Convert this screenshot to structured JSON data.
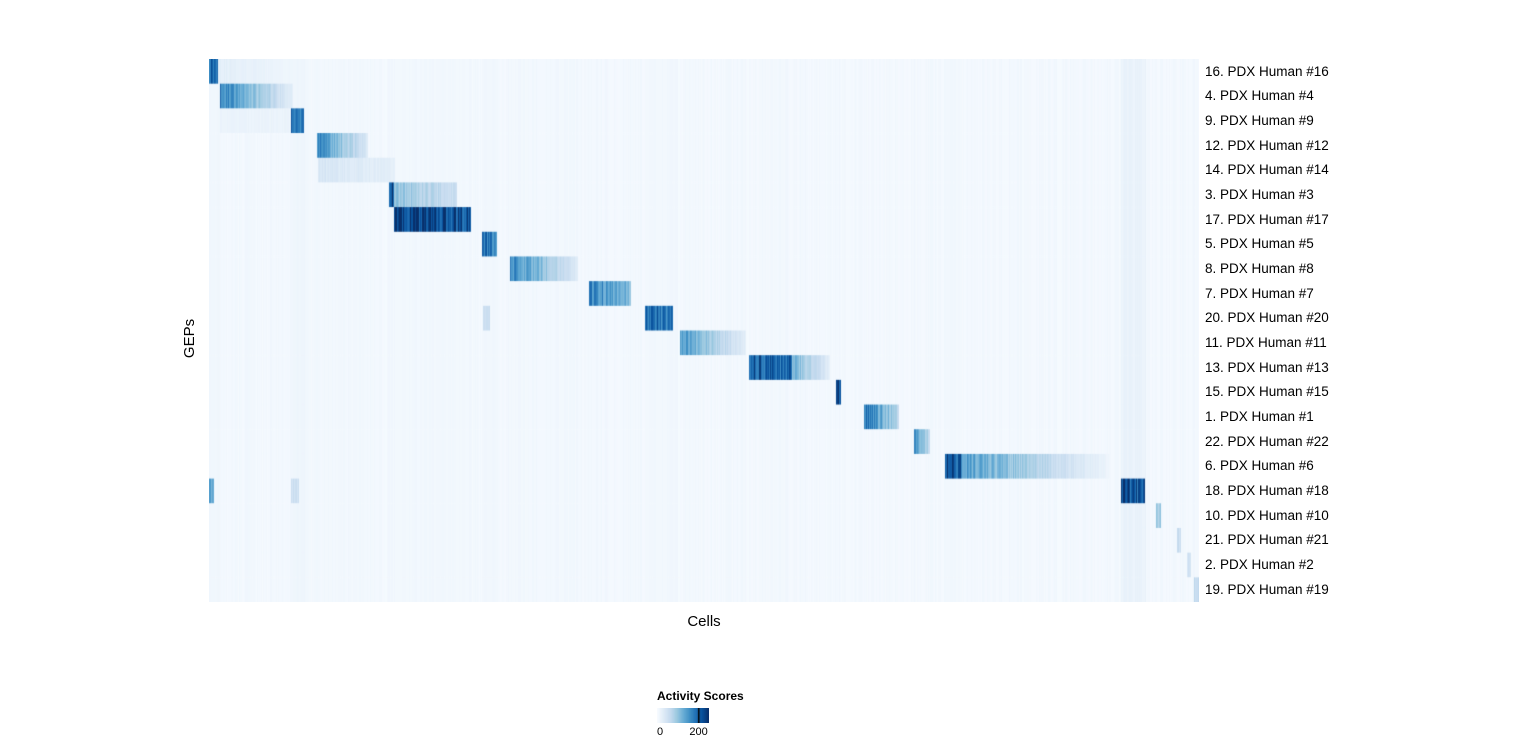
{
  "chart_data": {
    "type": "heatmap",
    "title": "",
    "xlabel": "Cells",
    "ylabel": "GEPs",
    "colormap": "Blues",
    "background_value_color": "#f7fbff",
    "max_value_color": "#08306b",
    "value_range": [
      0,
      250
    ],
    "colormap_stops": [
      [
        0.0,
        247,
        251,
        255
      ],
      [
        0.125,
        222,
        235,
        247
      ],
      [
        0.25,
        198,
        219,
        239
      ],
      [
        0.375,
        158,
        202,
        225
      ],
      [
        0.5,
        107,
        174,
        214
      ],
      [
        0.625,
        66,
        146,
        198
      ],
      [
        0.75,
        33,
        113,
        181
      ],
      [
        0.875,
        8,
        81,
        156
      ],
      [
        1.0,
        8,
        48,
        107
      ]
    ],
    "legend": {
      "title": "Activity Scores",
      "min_label": "0",
      "max_label": "200",
      "tick_fraction": 0.8
    },
    "rows": [
      {
        "label": "16. PDX Human #16",
        "segments": [
          [
            0.0,
            0.009,
            200,
            200
          ],
          [
            0.009,
            0.084,
            25,
            10
          ]
        ]
      },
      {
        "label": "4. PDX Human #4",
        "segments": [
          [
            0.011,
            0.084,
            170,
            25
          ]
        ]
      },
      {
        "label": "9. PDX Human #9",
        "segments": [
          [
            0.011,
            0.082,
            15,
            15
          ],
          [
            0.082,
            0.096,
            190,
            190
          ]
        ]
      },
      {
        "label": "12. PDX Human #12",
        "segments": [
          [
            0.109,
            0.16,
            160,
            35
          ]
        ]
      },
      {
        "label": "14. PDX Human #14",
        "segments": [
          [
            0.11,
            0.188,
            40,
            22
          ]
        ]
      },
      {
        "label": "3. PDX Human #3",
        "segments": [
          [
            0.181,
            0.187,
            235,
            235
          ],
          [
            0.187,
            0.25,
            100,
            55
          ]
        ]
      },
      {
        "label": "17. PDX Human #17",
        "segments": [
          [
            0.187,
            0.264,
            240,
            220
          ]
        ]
      },
      {
        "label": "5. PDX Human #5",
        "segments": [
          [
            0.276,
            0.291,
            190,
            160
          ]
        ]
      },
      {
        "label": "8. PDX Human #8",
        "segments": [
          [
            0.304,
            0.373,
            170,
            30
          ]
        ]
      },
      {
        "label": "7. PDX Human #7",
        "segments": [
          [
            0.384,
            0.426,
            170,
            110
          ]
        ]
      },
      {
        "label": "20. PDX Human #20",
        "segments": [
          [
            0.277,
            0.284,
            60,
            60
          ],
          [
            0.44,
            0.469,
            200,
            170
          ]
        ]
      },
      {
        "label": "11. PDX Human #11",
        "segments": [
          [
            0.476,
            0.542,
            150,
            25
          ]
        ]
      },
      {
        "label": "13. PDX Human #13",
        "segments": [
          [
            0.546,
            0.589,
            210,
            190
          ],
          [
            0.589,
            0.627,
            120,
            25
          ]
        ]
      },
      {
        "label": "15. PDX Human #15",
        "segments": [
          [
            0.633,
            0.639,
            230,
            230
          ]
        ]
      },
      {
        "label": "1. PDX Human #1",
        "segments": [
          [
            0.662,
            0.697,
            185,
            70
          ]
        ]
      },
      {
        "label": "22. PDX Human #22",
        "segments": [
          [
            0.712,
            0.729,
            170,
            60
          ]
        ]
      },
      {
        "label": "6. PDX Human #6",
        "segments": [
          [
            0.744,
            0.76,
            235,
            200
          ],
          [
            0.76,
            0.91,
            140,
            12
          ]
        ]
      },
      {
        "label": "18. PDX Human #18",
        "segments": [
          [
            0.0,
            0.005,
            130,
            130
          ],
          [
            0.082,
            0.09,
            50,
            50
          ],
          [
            0.922,
            0.946,
            225,
            200
          ]
        ]
      },
      {
        "label": "10. PDX Human #10",
        "segments": [
          [
            0.957,
            0.962,
            90,
            90
          ]
        ]
      },
      {
        "label": "21. PDX Human #21",
        "segments": [
          [
            0.978,
            0.982,
            55,
            55
          ]
        ]
      },
      {
        "label": "2. PDX Human #2",
        "segments": [
          [
            0.988,
            0.992,
            45,
            45
          ]
        ]
      },
      {
        "label": "19. PDX Human #19",
        "segments": [
          [
            0.995,
            1.0,
            60,
            60
          ]
        ]
      }
    ],
    "column_bands": [
      [
        0.0,
        0.01,
        8
      ],
      [
        0.082,
        0.097,
        10
      ],
      [
        0.109,
        0.16,
        5
      ],
      [
        0.181,
        0.265,
        6
      ],
      [
        0.276,
        0.292,
        8
      ],
      [
        0.304,
        0.374,
        4
      ],
      [
        0.384,
        0.427,
        4
      ],
      [
        0.44,
        0.47,
        6
      ],
      [
        0.546,
        0.59,
        4
      ],
      [
        0.744,
        0.761,
        7
      ],
      [
        0.922,
        0.947,
        16
      ]
    ]
  }
}
